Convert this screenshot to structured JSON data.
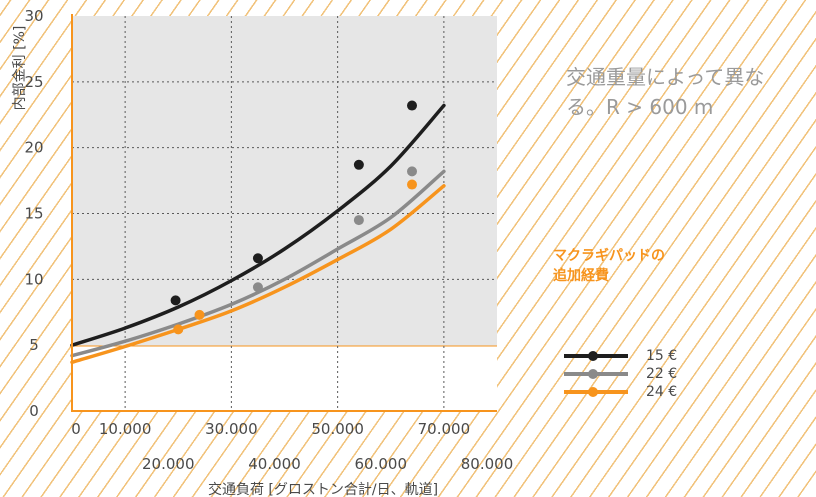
{
  "note": {
    "line1": "交通重量によって異な",
    "line2": "る。R > 600 m"
  },
  "legend": {
    "title_line1": "マクラギパッドの",
    "title_line2": "追加経費"
  },
  "chart_data": {
    "type": "line",
    "title": "",
    "xlabel": "交通負荷 [グロストン合計/日、軌道]",
    "ylabel": "内部金利 [%]",
    "xlim": [
      0,
      80000
    ],
    "ylim": [
      0,
      30
    ],
    "y_ticks": [
      "0",
      "5",
      "10",
      "15",
      "20",
      "25",
      "30"
    ],
    "x_ticks_upper": [
      {
        "value": 0,
        "label": "0"
      },
      {
        "value": 10000,
        "label": "10.000"
      },
      {
        "value": 30000,
        "label": "30.000"
      },
      {
        "value": 50000,
        "label": "50.000"
      },
      {
        "value": 70000,
        "label": "70.000"
      }
    ],
    "x_ticks_lower": [
      {
        "value": 20000,
        "label": "20.000"
      },
      {
        "value": 40000,
        "label": "40.000"
      },
      {
        "value": 60000,
        "label": "60.000"
      },
      {
        "value": 80000,
        "label": "80.000"
      }
    ],
    "grid": true,
    "threshold_y": 5,
    "legend_position": "right",
    "series": [
      {
        "name": "15 €",
        "color": "#1e1e1e",
        "curve": [
          [
            0,
            5.0
          ],
          [
            10000,
            6.3
          ],
          [
            20000,
            7.9
          ],
          [
            30000,
            9.9
          ],
          [
            40000,
            12.3
          ],
          [
            50000,
            15.2
          ],
          [
            60000,
            18.6
          ],
          [
            70000,
            23.2
          ]
        ],
        "markers": [
          [
            19500,
            8.4
          ],
          [
            35000,
            11.6
          ],
          [
            54000,
            18.7
          ],
          [
            64000,
            23.2
          ]
        ]
      },
      {
        "name": "22 €",
        "color": "#8a8a8a",
        "curve": [
          [
            0,
            4.2
          ],
          [
            10000,
            5.3
          ],
          [
            20000,
            6.6
          ],
          [
            30000,
            8.1
          ],
          [
            40000,
            10.0
          ],
          [
            50000,
            12.3
          ],
          [
            60000,
            14.7
          ],
          [
            70000,
            18.2
          ]
        ],
        "markers": [
          [
            35000,
            9.4
          ],
          [
            54000,
            14.5
          ],
          [
            64000,
            18.2
          ]
        ]
      },
      {
        "name": "24 €",
        "color": "#f7941d",
        "curve": [
          [
            0,
            3.7
          ],
          [
            10000,
            4.9
          ],
          [
            20000,
            6.2
          ],
          [
            30000,
            7.6
          ],
          [
            40000,
            9.4
          ],
          [
            50000,
            11.5
          ],
          [
            60000,
            13.8
          ],
          [
            70000,
            17.1
          ]
        ],
        "markers": [
          [
            20000,
            6.2
          ],
          [
            24000,
            7.3
          ],
          [
            64000,
            17.2
          ]
        ]
      }
    ]
  }
}
